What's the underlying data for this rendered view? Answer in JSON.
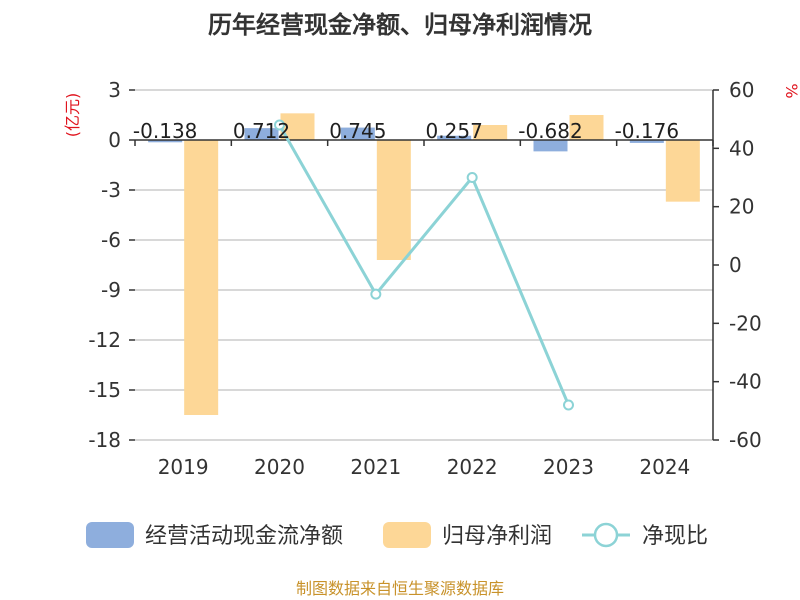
{
  "chart_data": {
    "type": "bar",
    "title": "历年经营现金净额、归母净利润情况",
    "categories": [
      "2019",
      "2020",
      "2021",
      "2022",
      "2023",
      "2024"
    ],
    "left_axis": {
      "unit": "(亿元)",
      "ylim": [
        -18,
        3
      ],
      "ticks": [
        3,
        0,
        -3,
        -6,
        -9,
        -12,
        -15,
        -18
      ]
    },
    "right_axis": {
      "unit": "%",
      "ylim": [
        -60,
        60
      ],
      "ticks": [
        60,
        40,
        20,
        0,
        -20,
        -40,
        -60
      ]
    },
    "series": [
      {
        "name": "经营活动现金流净额",
        "type": "bar",
        "axis": "left",
        "color": "#8eaedd",
        "values": [
          -0.138,
          0.712,
          0.745,
          0.257,
          -0.682,
          -0.176
        ],
        "labels": [
          "-0.138",
          "0.712",
          "0.745",
          "0.257",
          "-0.682",
          "-0.176"
        ]
      },
      {
        "name": "归母净利润",
        "type": "bar",
        "axis": "left",
        "color": "#fdd797",
        "values": [
          -16.5,
          1.6,
          -7.2,
          0.9,
          1.5,
          -3.7
        ]
      },
      {
        "name": "净现比",
        "type": "line",
        "axis": "right",
        "color": "#8cd3d6",
        "values": [
          null,
          48,
          -10,
          30,
          -48,
          null
        ]
      }
    ],
    "grid": true,
    "legend_position": "bottom"
  },
  "source_text": "制图数据来自恒生聚源数据库"
}
